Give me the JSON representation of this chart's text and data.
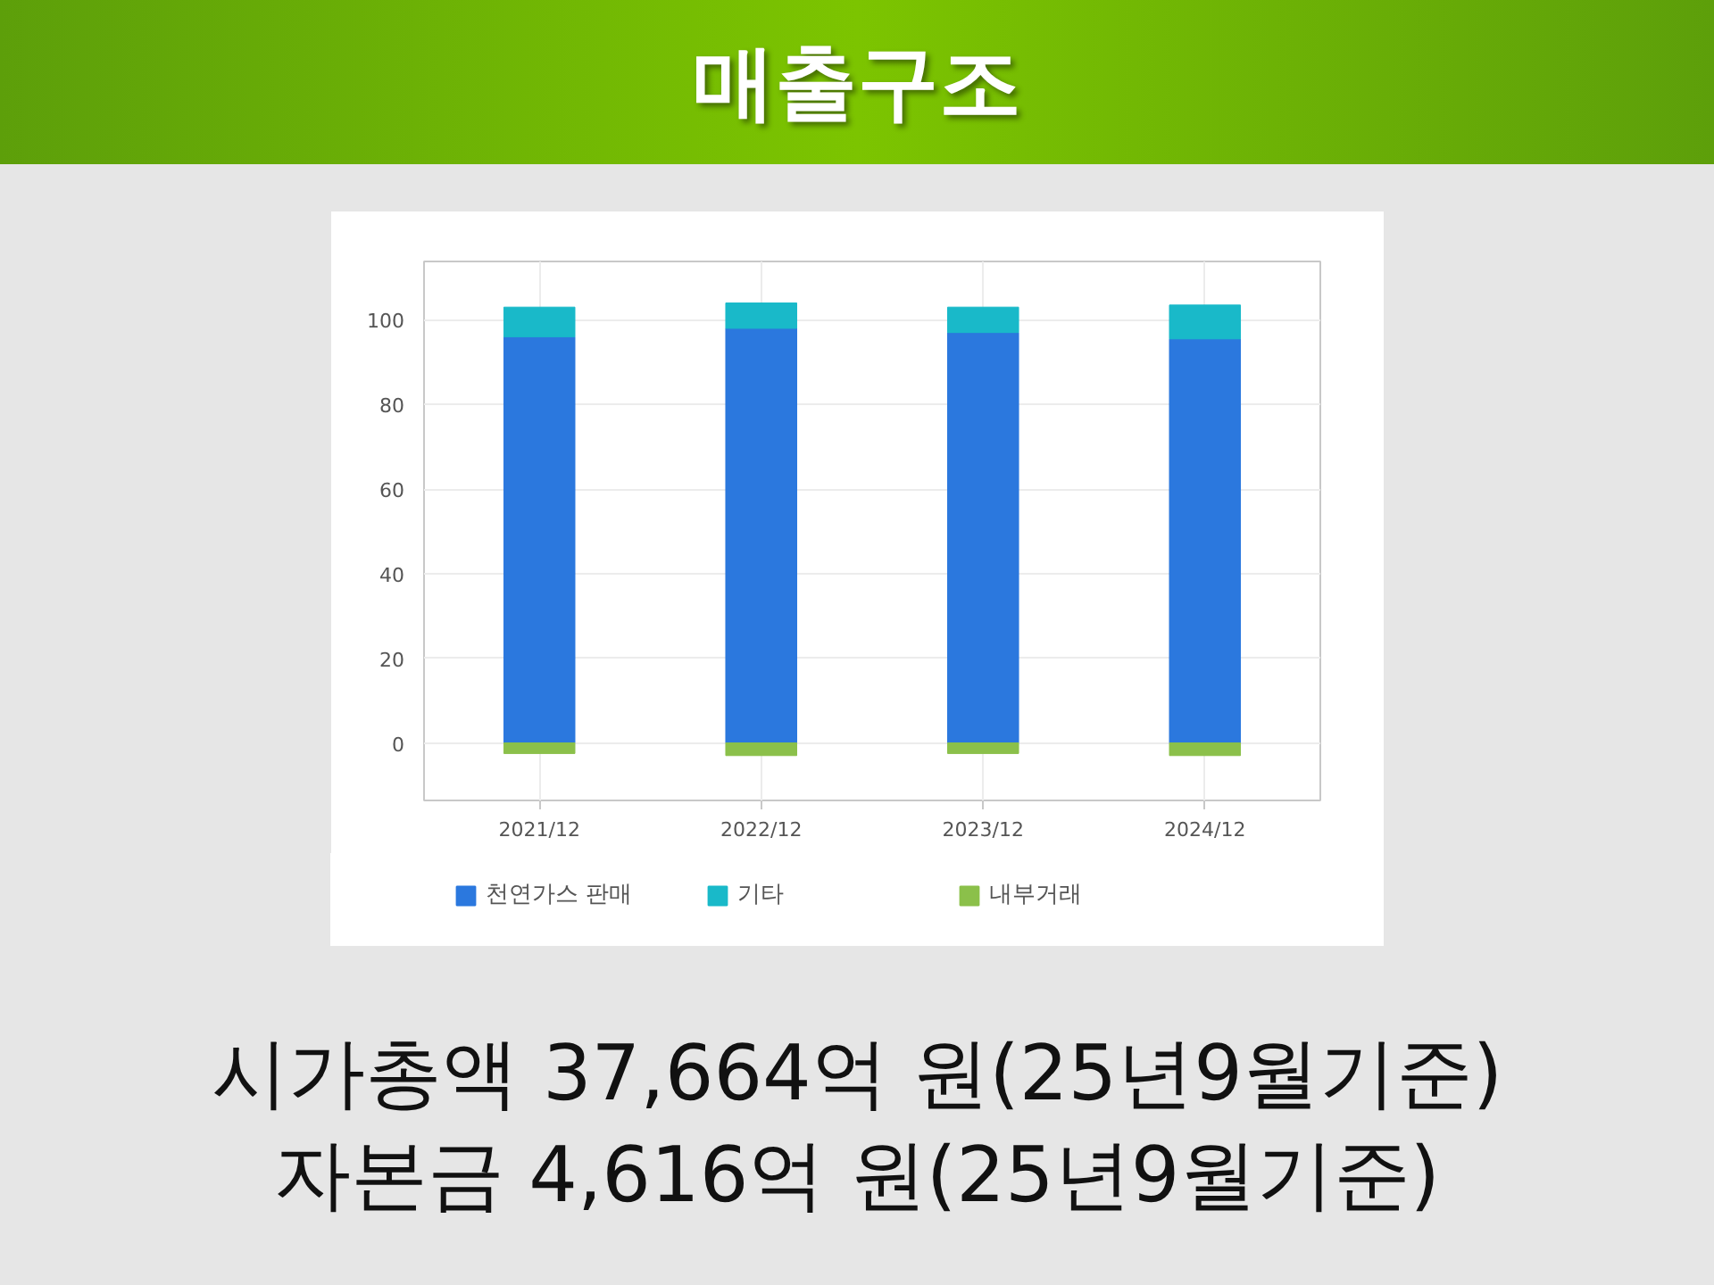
{
  "chart_data": {
    "type": "bar",
    "title": "매출구조",
    "categories": [
      "2021/12",
      "2022/12",
      "2023/12",
      "2024/12"
    ],
    "stacked": true,
    "series": [
      {
        "name": "천연가스 판매",
        "color": "#2b78de",
        "values": [
          96,
          98,
          97,
          95.5
        ]
      },
      {
        "name": "기타",
        "color": "#19b9c9",
        "values": [
          7,
          6,
          6,
          8
        ]
      },
      {
        "name": "내부거래",
        "color": "#8bc04a",
        "values": [
          -2.5,
          -3,
          -2.5,
          -3
        ]
      }
    ],
    "ylim": [
      -13.6,
      113.8
    ],
    "yticks": [
      0,
      20,
      40,
      60,
      80,
      100
    ],
    "grid": true,
    "legend": "bottom",
    "annotations": [
      "시가총액 37,664억 원(25년9월기준)",
      "자본금 4,616억 원(25년9월기준)"
    ]
  }
}
